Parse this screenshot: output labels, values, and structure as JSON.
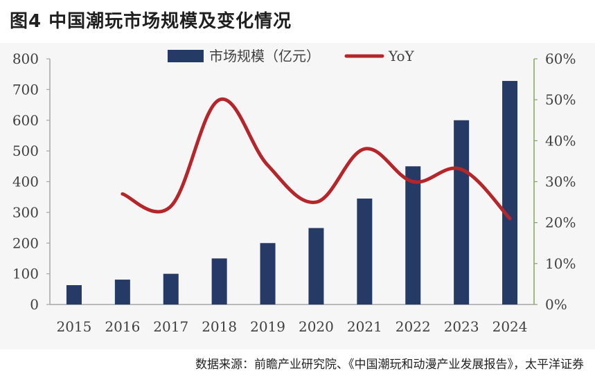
{
  "figure": {
    "title": "图4  中国潮玩市场规模及变化情况",
    "source": "数据来源：前瞻产业研究院、《中国潮玩和动漫产业发展报告》，太平洋证券"
  },
  "colors": {
    "bar": "#263a66",
    "line": "#b5262b",
    "left_axis": "#a6a6a6",
    "right_axis": "#7ea65a"
  },
  "chart_data": {
    "type": "bar",
    "categories": [
      "2015",
      "2016",
      "2017",
      "2018",
      "2019",
      "2020",
      "2021",
      "2022",
      "2023",
      "2024"
    ],
    "series": [
      {
        "name": "市场规模（亿元）",
        "type": "bar",
        "axis": "left",
        "values": [
          63,
          81,
          100,
          150,
          200,
          249,
          345,
          450,
          600,
          728
        ]
      },
      {
        "name": "YoY",
        "type": "line",
        "axis": "right",
        "values": [
          null,
          0.27,
          0.24,
          0.5,
          0.34,
          0.25,
          0.38,
          0.3,
          0.33,
          0.21
        ]
      }
    ],
    "y_left": {
      "min": 0,
      "max": 800,
      "step": 100,
      "tick_labels": [
        "0",
        "100",
        "200",
        "300",
        "400",
        "500",
        "600",
        "700",
        "800"
      ]
    },
    "y_right": {
      "min": 0,
      "max": 0.6,
      "step": 0.1,
      "tick_labels": [
        "0%",
        "10%",
        "20%",
        "30%",
        "40%",
        "50%",
        "60%"
      ]
    },
    "legend": {
      "position": "top-center",
      "items": [
        "市场规模（亿元）",
        "YoY"
      ]
    },
    "grid": false
  }
}
